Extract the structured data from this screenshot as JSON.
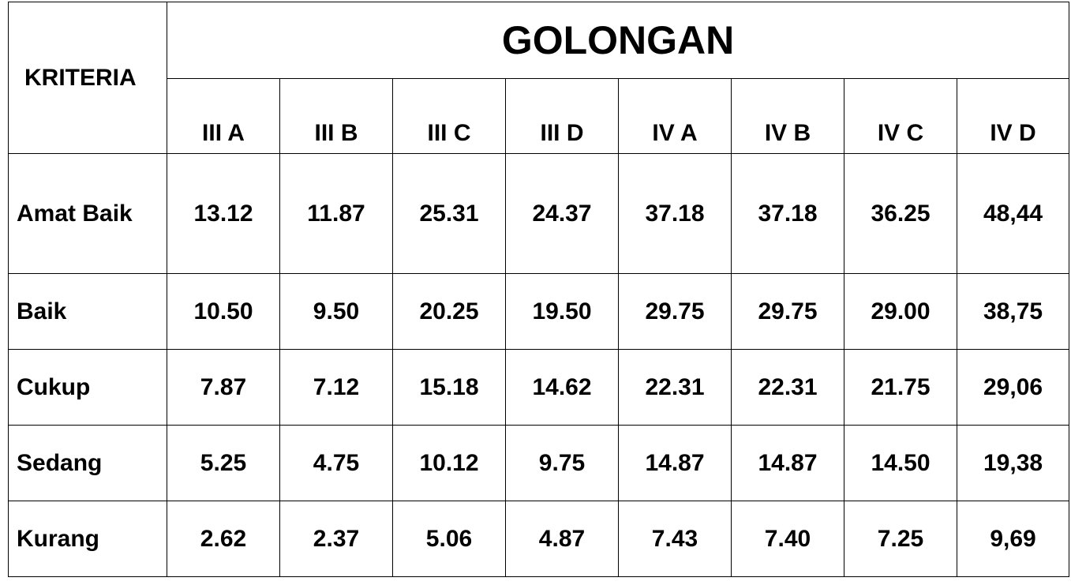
{
  "table": {
    "corner_header": "KRITERIA",
    "group_header": "GOLONGAN",
    "columns": [
      "III A",
      "III B",
      "III C",
      "III D",
      "IV A",
      "IV B",
      "IV C",
      "IV D"
    ],
    "rows": [
      {
        "label": "Amat Baik",
        "values": [
          "13.12",
          "11.87",
          "25.31",
          "24.37",
          "37.18",
          "37.18",
          "36.25",
          "48,44"
        ]
      },
      {
        "label": "Baik",
        "values": [
          "10.50",
          "9.50",
          "20.25",
          "19.50",
          "29.75",
          "29.75",
          "29.00",
          "38,75"
        ]
      },
      {
        "label": "Cukup",
        "values": [
          "7.87",
          "7.12",
          "15.18",
          "14.62",
          "22.31",
          "22.31",
          "21.75",
          "29,06"
        ]
      },
      {
        "label": "Sedang",
        "values": [
          "5.25",
          "4.75",
          "10.12",
          "9.75",
          "14.87",
          "14.87",
          "14.50",
          "19,38"
        ]
      },
      {
        "label": "Kurang",
        "values": [
          "2.62",
          "2.37",
          "5.06",
          "4.87",
          "7.43",
          "7.40",
          "7.25",
          "9,69"
        ]
      }
    ]
  }
}
